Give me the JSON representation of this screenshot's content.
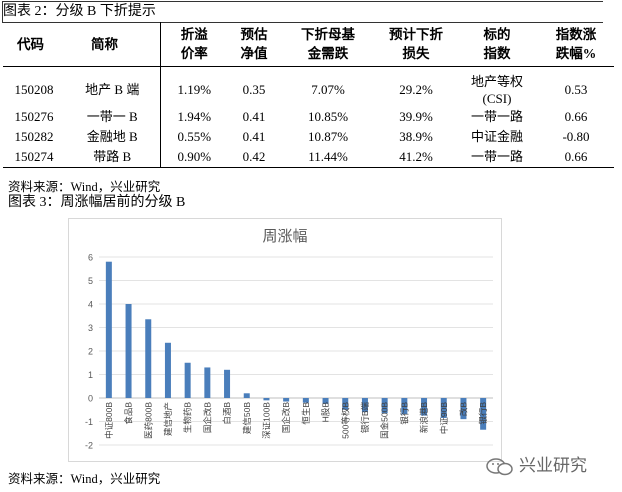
{
  "caption2": "图表 2：分级 B 下折提示",
  "table": {
    "headers": [
      {
        "l1": "代码",
        "l2": ""
      },
      {
        "l1": "简称",
        "l2": ""
      },
      {
        "l1": "折溢",
        "l2": "价率"
      },
      {
        "l1": "预估",
        "l2": "净值"
      },
      {
        "l1": "下折母基",
        "l2": "金需跌"
      },
      {
        "l1": "预计下折",
        "l2": "损失"
      },
      {
        "l1": "标的",
        "l2": "指数"
      },
      {
        "l1": "指数涨",
        "l2": "跌幅%"
      }
    ],
    "rows": [
      {
        "code": "150208",
        "name": "地产 B 端",
        "premium": "1.19%",
        "nav": "0.35",
        "drop": "7.07%",
        "loss": "29.2%",
        "index": "地产等权",
        "index2": "(CSI)",
        "chg": "0.53"
      },
      {
        "code": "150276",
        "name": "一带一 B",
        "premium": "1.94%",
        "nav": "0.41",
        "drop": "10.85%",
        "loss": "39.9%",
        "index": "一带一路",
        "index2": "",
        "chg": "0.66"
      },
      {
        "code": "150282",
        "name": "金融地 B",
        "premium": "0.55%",
        "nav": "0.41",
        "drop": "10.87%",
        "loss": "38.9%",
        "index": "中证金融",
        "index2": "",
        "chg": "-0.80"
      },
      {
        "code": "150274",
        "name": "带路 B",
        "premium": "0.90%",
        "nav": "0.42",
        "drop": "11.44%",
        "loss": "41.2%",
        "index": "一带一路",
        "index2": "",
        "chg": "0.66"
      }
    ]
  },
  "source1": "资料来源：Wind，兴业研究",
  "caption3": "图表 3：周涨幅居前的分级 B",
  "chart_data": {
    "type": "bar",
    "title": "周涨幅",
    "categories": [
      "中证800B",
      "食品B",
      "医药800B",
      "建信地产",
      "生物药B",
      "国企改B",
      "白酒B",
      "建信50B",
      "深证100B",
      "国企改B",
      "恒生B",
      "H股B",
      "500等权B",
      "银行B端",
      "国金500B",
      "银行B",
      "新浪港B",
      "中证90B",
      "改B",
      "银行B"
    ],
    "values": [
      5.8,
      4.0,
      3.35,
      2.35,
      1.5,
      1.3,
      1.2,
      0.2,
      -0.1,
      -0.15,
      -0.2,
      -0.25,
      -0.5,
      -0.6,
      -0.65,
      -0.7,
      -0.75,
      -0.85,
      -0.9,
      -1.35
    ],
    "ylim": [
      -2,
      6
    ],
    "yticks": [
      "-2",
      "-1",
      "0",
      "1",
      "2",
      "3",
      "4",
      "5",
      "6"
    ],
    "bar_color": "#4a7ebb"
  },
  "source2": "资料来源：Wind，兴业研究",
  "watermark": "兴业研究"
}
